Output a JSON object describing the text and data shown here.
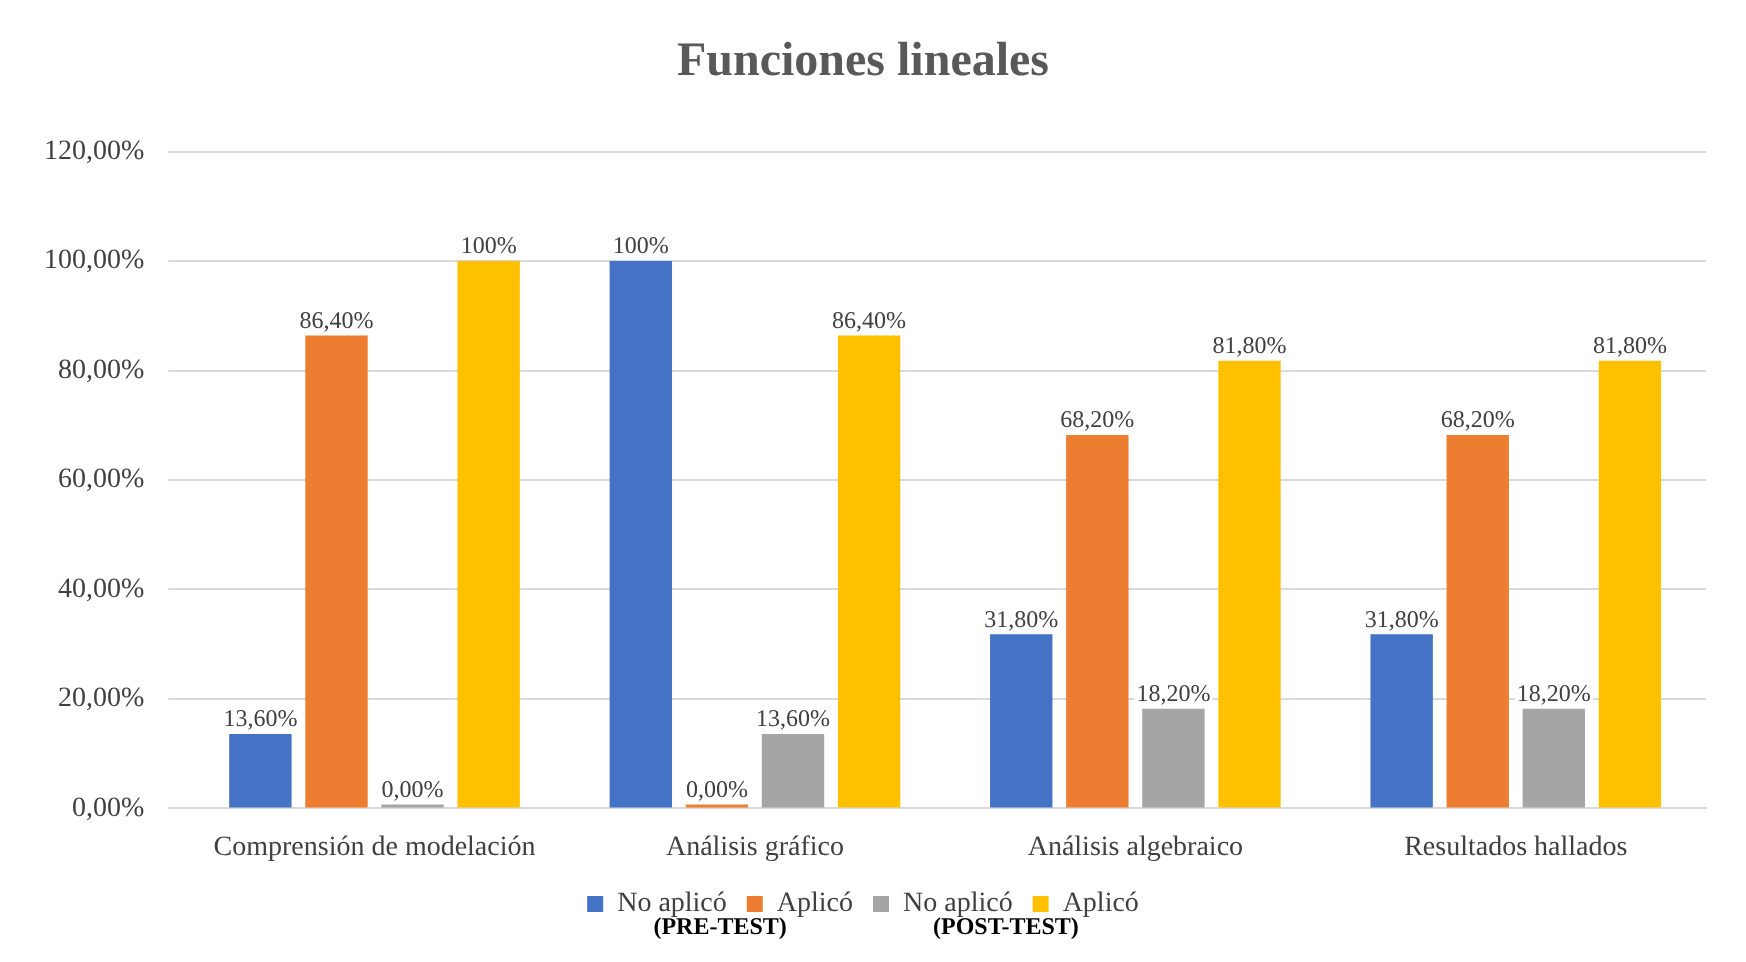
{
  "chart_data": {
    "type": "bar",
    "title": "Funciones lineales",
    "categories": [
      "Comprensión de modelación",
      "Análisis gráfico",
      "Análisis algebraico",
      "Resultados hallados"
    ],
    "series": [
      {
        "name": "No aplicó",
        "color": "#4472c4",
        "values": [
          13.6,
          100,
          31.8,
          31.8
        ],
        "value_labels": [
          "13,60%",
          "100%",
          "31,80%",
          "31,80%"
        ]
      },
      {
        "name": "Aplicó",
        "color": "#ed7d31",
        "values": [
          86.4,
          0,
          68.2,
          68.2
        ],
        "value_labels": [
          "86,40%",
          "0,00%",
          "68,20%",
          "68,20%"
        ]
      },
      {
        "name": "No aplicó",
        "color": "#a5a5a5",
        "values": [
          0,
          13.6,
          18.2,
          18.2
        ],
        "value_labels": [
          "0,00%",
          "13,60%",
          "18,20%",
          "18,20%"
        ]
      },
      {
        "name": "Aplicó",
        "color": "#ffc000",
        "values": [
          100,
          86.4,
          81.8,
          81.8
        ],
        "value_labels": [
          "100%",
          "86,40%",
          "81,80%",
          "81,80%"
        ]
      }
    ],
    "ylim": [
      0,
      120
    ],
    "yticks": [
      {
        "value": 0,
        "label": "0,00%"
      },
      {
        "value": 20,
        "label": "20,00%"
      },
      {
        "value": 40,
        "label": "40,00%"
      },
      {
        "value": 60,
        "label": "60,00%"
      },
      {
        "value": 80,
        "label": "80,00%"
      },
      {
        "value": 100,
        "label": "100,00%"
      },
      {
        "value": 120,
        "label": "120,00%"
      }
    ],
    "grid": "y",
    "legend": "bottom",
    "annotations": [
      "(PRE-TEST)",
      "(POST-TEST)"
    ]
  }
}
